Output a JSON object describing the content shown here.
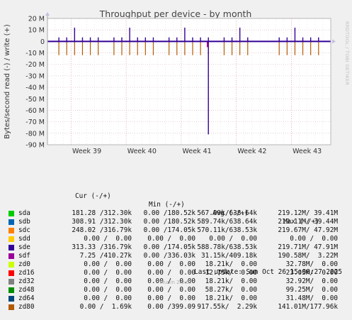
{
  "chart_data": {
    "type": "line",
    "title": "Throughput per device - by month",
    "ylabel": "Bytes/second read (-) / write (+)",
    "ylim": [
      -90000000,
      20000000
    ],
    "yticks": [
      "20 M",
      "10 M",
      "0",
      "-10 M",
      "-20 M",
      "-30 M",
      "-40 M",
      "-50 M",
      "-60 M",
      "-70 M",
      "-80 M",
      "-90 M"
    ],
    "xticks": [
      "Week 39",
      "Week 40",
      "Week 41",
      "Week 42",
      "Week 43"
    ],
    "grid": true,
    "series": [
      {
        "name": "sda",
        "color": "#00cc00"
      },
      {
        "name": "sdb",
        "color": "#0066b3"
      },
      {
        "name": "sdc",
        "color": "#ff8000"
      },
      {
        "name": "sdd",
        "color": "#ffcc00"
      },
      {
        "name": "sde",
        "color": "#330099"
      },
      {
        "name": "sdf",
        "color": "#990099"
      },
      {
        "name": "zd0",
        "color": "#ccff00"
      },
      {
        "name": "zd16",
        "color": "#ff0000"
      },
      {
        "name": "zd32",
        "color": "#808080"
      },
      {
        "name": "zd48",
        "color": "#008f00"
      },
      {
        "name": "zd64",
        "color": "#00487d"
      },
      {
        "name": "zd80",
        "color": "#b35a00"
      }
    ],
    "spikes": {
      "daily_write_peak_M": 3.5,
      "weekly_write_peak_M": 12,
      "daily_read_trough_M": -12,
      "big_read_trough_M": -81
    }
  },
  "legend": {
    "headers": {
      "cur": "Cur (-/+)",
      "min": "Min (-/+)",
      "avg": "Avg (-/+)",
      "max": "Max (-/+)"
    },
    "rows": [
      {
        "name": "sda",
        "color": "#00cc00",
        "cur": "181.28 /312.30k",
        "min": "0.00 /180.52k",
        "avg": "567.09k/638.64k",
        "max": "219.12M/ 39.41M"
      },
      {
        "name": "sdb",
        "color": "#0066b3",
        "cur": "308.91 /312.30k",
        "min": "0.00 /180.52k",
        "avg": "589.74k/638.64k",
        "max": "219.11M/ 39.44M"
      },
      {
        "name": "sdc",
        "color": "#ff8000",
        "cur": "248.02 /316.79k",
        "min": "0.00 /174.05k",
        "avg": "570.11k/638.53k",
        "max": "219.67M/ 47.92M"
      },
      {
        "name": "sdd",
        "color": "#ffcc00",
        "cur": "0.00 /  0.00",
        "min": "0.00 /  0.00",
        "avg": "0.00 /  0.00",
        "max": "0.00 /  0.00"
      },
      {
        "name": "sde",
        "color": "#330099",
        "cur": "313.33 /316.79k",
        "min": "0.00 /174.05k",
        "avg": "588.78k/638.53k",
        "max": "219.71M/ 47.91M"
      },
      {
        "name": "sdf",
        "color": "#990099",
        "cur": "7.25 /410.27k",
        "min": "0.00 /336.03k",
        "avg": "31.15k/409.18k",
        "max": "190.58M/  3.22M"
      },
      {
        "name": "zd0",
        "color": "#ccff00",
        "cur": "0.00 /  0.00",
        "min": "0.00 /  0.00",
        "avg": "18.21k/  0.00",
        "max": "32.78M/  0.00"
      },
      {
        "name": "zd16",
        "color": "#ff0000",
        "cur": "0.00 /  0.00",
        "min": "0.00 /  0.00",
        "avg": "12.75k/  0.00",
        "max": "23.05M/  0.00"
      },
      {
        "name": "zd32",
        "color": "#808080",
        "cur": "0.00 /  0.00",
        "min": "0.00 /  0.00",
        "avg": "18.21k/  0.00",
        "max": "32.92M/  0.00"
      },
      {
        "name": "zd48",
        "color": "#008f00",
        "cur": "0.00 /  0.00",
        "min": "0.00 /  0.00",
        "avg": "58.27k/  0.00",
        "max": "99.25M/  0.00"
      },
      {
        "name": "zd64",
        "color": "#00487d",
        "cur": "0.00 /  0.00",
        "min": "0.00 /  0.00",
        "avg": "18.21k/  0.00",
        "max": "31.48M/  0.00"
      },
      {
        "name": "zd80",
        "color": "#b35a00",
        "cur": "0.00 /  1.69k",
        "min": "0.00 /399.09",
        "avg": "917.55k/  2.29k",
        "max": "141.01M/177.96k"
      }
    ]
  },
  "last_update": "Last update: Sun Oct 26 15:00:27 2025",
  "footer": "Munin 2.0.67",
  "side_text": "RRDTOOL / TOBI OETIKER"
}
